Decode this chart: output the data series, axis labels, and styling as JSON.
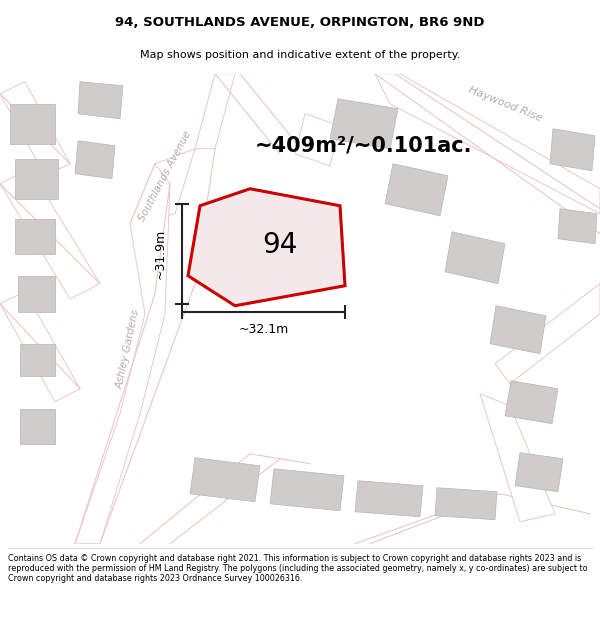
{
  "title": "94, SOUTHLANDS AVENUE, ORPINGTON, BR6 9ND",
  "subtitle": "Map shows position and indicative extent of the property.",
  "footer": "Contains OS data © Crown copyright and database right 2021. This information is subject to Crown copyright and database rights 2023 and is reproduced with the permission of HM Land Registry. The polygons (including the associated geometry, namely x, y co-ordinates) are subject to Crown copyright and database rights 2023 Ordnance Survey 100026316.",
  "area_label": "~409m²/~0.101ac.",
  "property_number": "94",
  "dim_horizontal": "~32.1m",
  "dim_vertical": "~31.9m",
  "map_bg": "#f2eeee",
  "road_color": "#e8c8c8",
  "road_edge": "#d4a8a8",
  "building_color": "#d0cccc",
  "building_outline": "#b8b4b4",
  "street_label_color": "#b8aaaa",
  "property_fill": "#f5e8e8",
  "property_edge": "#cc0000",
  "road_name_southlands": "Southlands Avenue",
  "road_name_ashley": "Ashley Gardens",
  "road_name_haywood": "Haywood Rise"
}
